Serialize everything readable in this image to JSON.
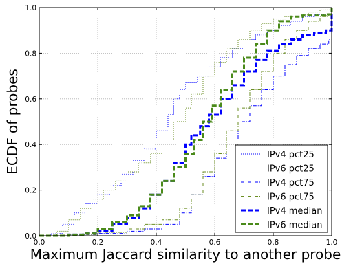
{
  "chart_data": {
    "type": "line",
    "xlabel": "Maximum Jaccard similarity to another probe",
    "ylabel": "ECDF of probes",
    "xlim": [
      0.0,
      1.0
    ],
    "ylim": [
      0.0,
      1.0
    ],
    "x_ticks": [
      "0.0",
      "0.2",
      "0.4",
      "0.6",
      "0.8",
      "1.0"
    ],
    "y_ticks": [
      "0.0",
      "0.2",
      "0.4",
      "0.6",
      "0.8",
      "1.0"
    ],
    "grid": true,
    "legend_position": "bottom-right",
    "series": [
      {
        "name": "IPv4 pct25",
        "color": "#0000ff",
        "style": "dotted",
        "width": 1,
        "points": [
          [
            0,
            0
          ],
          [
            0.04,
            0.01
          ],
          [
            0.08,
            0.05
          ],
          [
            0.12,
            0.1
          ],
          [
            0.16,
            0.14
          ],
          [
            0.2,
            0.18
          ],
          [
            0.24,
            0.22
          ],
          [
            0.28,
            0.27
          ],
          [
            0.32,
            0.33
          ],
          [
            0.36,
            0.38
          ],
          [
            0.4,
            0.46
          ],
          [
            0.44,
            0.53
          ],
          [
            0.46,
            0.6
          ],
          [
            0.48,
            0.64
          ],
          [
            0.5,
            0.67
          ],
          [
            0.54,
            0.7
          ],
          [
            0.58,
            0.74
          ],
          [
            0.62,
            0.78
          ],
          [
            0.66,
            0.82
          ],
          [
            0.7,
            0.86
          ],
          [
            0.74,
            0.88
          ],
          [
            0.78,
            0.9
          ],
          [
            0.82,
            0.92
          ],
          [
            0.86,
            0.94
          ],
          [
            0.9,
            0.96
          ],
          [
            0.94,
            0.97
          ],
          [
            0.98,
            0.97
          ],
          [
            1.0,
            1.0
          ]
        ]
      },
      {
        "name": "IPv6 pct25",
        "color": "#6b8e23",
        "style": "dotted",
        "width": 1,
        "points": [
          [
            0,
            0
          ],
          [
            0.06,
            0.02
          ],
          [
            0.1,
            0.07
          ],
          [
            0.14,
            0.12
          ],
          [
            0.18,
            0.16
          ],
          [
            0.22,
            0.2
          ],
          [
            0.26,
            0.24
          ],
          [
            0.3,
            0.28
          ],
          [
            0.34,
            0.32
          ],
          [
            0.38,
            0.36
          ],
          [
            0.42,
            0.42
          ],
          [
            0.46,
            0.5
          ],
          [
            0.5,
            0.56
          ],
          [
            0.52,
            0.62
          ],
          [
            0.56,
            0.7
          ],
          [
            0.6,
            0.76
          ],
          [
            0.64,
            0.82
          ],
          [
            0.68,
            0.86
          ],
          [
            0.72,
            0.9
          ],
          [
            0.76,
            0.93
          ],
          [
            0.8,
            0.95
          ],
          [
            0.84,
            0.96
          ],
          [
            0.88,
            0.97
          ],
          [
            0.92,
            0.98
          ],
          [
            0.96,
            0.99
          ],
          [
            1.0,
            1.0
          ]
        ]
      },
      {
        "name": "IPv4 pct75",
        "color": "#0000ff",
        "style": "dashdot",
        "width": 1,
        "points": [
          [
            0,
            0
          ],
          [
            0.1,
            0.005
          ],
          [
            0.2,
            0.01
          ],
          [
            0.3,
            0.02
          ],
          [
            0.36,
            0.03
          ],
          [
            0.42,
            0.05
          ],
          [
            0.48,
            0.1
          ],
          [
            0.52,
            0.18
          ],
          [
            0.56,
            0.26
          ],
          [
            0.6,
            0.34
          ],
          [
            0.64,
            0.42
          ],
          [
            0.68,
            0.5
          ],
          [
            0.72,
            0.57
          ],
          [
            0.76,
            0.64
          ],
          [
            0.8,
            0.7
          ],
          [
            0.84,
            0.75
          ],
          [
            0.88,
            0.79
          ],
          [
            0.92,
            0.82
          ],
          [
            0.96,
            0.84
          ],
          [
            0.99,
            0.86
          ],
          [
            1.0,
            1.0
          ]
        ]
      },
      {
        "name": "IPv6 pct75",
        "color": "#6b8e23",
        "style": "dashdot",
        "width": 1,
        "points": [
          [
            0,
            0
          ],
          [
            0.1,
            0.005
          ],
          [
            0.2,
            0.015
          ],
          [
            0.3,
            0.03
          ],
          [
            0.36,
            0.05
          ],
          [
            0.42,
            0.07
          ],
          [
            0.48,
            0.12
          ],
          [
            0.52,
            0.18
          ],
          [
            0.56,
            0.28
          ],
          [
            0.6,
            0.36
          ],
          [
            0.64,
            0.46
          ],
          [
            0.68,
            0.56
          ],
          [
            0.72,
            0.64
          ],
          [
            0.76,
            0.72
          ],
          [
            0.8,
            0.8
          ],
          [
            0.84,
            0.86
          ],
          [
            0.88,
            0.9
          ],
          [
            0.92,
            0.94
          ],
          [
            0.96,
            0.96
          ],
          [
            0.99,
            0.97
          ],
          [
            1.0,
            1.0
          ]
        ]
      },
      {
        "name": "IPv4 median",
        "color": "#0000ff",
        "style": "dashed",
        "width": 3,
        "points": [
          [
            0,
            0
          ],
          [
            0.1,
            0.005
          ],
          [
            0.15,
            0.01
          ],
          [
            0.2,
            0.02
          ],
          [
            0.25,
            0.05
          ],
          [
            0.3,
            0.08
          ],
          [
            0.34,
            0.12
          ],
          [
            0.38,
            0.18
          ],
          [
            0.42,
            0.24
          ],
          [
            0.46,
            0.32
          ],
          [
            0.5,
            0.4
          ],
          [
            0.52,
            0.44
          ],
          [
            0.55,
            0.48
          ],
          [
            0.58,
            0.53
          ],
          [
            0.62,
            0.6
          ],
          [
            0.66,
            0.66
          ],
          [
            0.7,
            0.72
          ],
          [
            0.74,
            0.77
          ],
          [
            0.78,
            0.81
          ],
          [
            0.82,
            0.84
          ],
          [
            0.86,
            0.86
          ],
          [
            0.9,
            0.88
          ],
          [
            0.94,
            0.89
          ],
          [
            0.98,
            0.9
          ],
          [
            1.0,
            1.0
          ]
        ]
      },
      {
        "name": "IPv6 median",
        "color": "#4a8a1a",
        "style": "dashed",
        "width": 3,
        "points": [
          [
            0,
            0
          ],
          [
            0.1,
            0.005
          ],
          [
            0.15,
            0.01
          ],
          [
            0.2,
            0.03
          ],
          [
            0.25,
            0.06
          ],
          [
            0.3,
            0.09
          ],
          [
            0.34,
            0.13
          ],
          [
            0.38,
            0.18
          ],
          [
            0.42,
            0.24
          ],
          [
            0.46,
            0.3
          ],
          [
            0.5,
            0.36
          ],
          [
            0.53,
            0.42
          ],
          [
            0.56,
            0.5
          ],
          [
            0.59,
            0.57
          ],
          [
            0.62,
            0.64
          ],
          [
            0.66,
            0.72
          ],
          [
            0.7,
            0.78
          ],
          [
            0.74,
            0.84
          ],
          [
            0.78,
            0.9
          ],
          [
            0.82,
            0.94
          ],
          [
            0.86,
            0.96
          ],
          [
            0.9,
            0.965
          ],
          [
            0.94,
            0.965
          ],
          [
            0.98,
            0.97
          ],
          [
            1.0,
            1.0
          ]
        ]
      }
    ]
  }
}
